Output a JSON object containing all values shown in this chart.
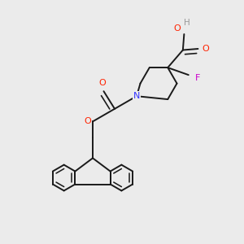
{
  "bg_color": "#ebebeb",
  "bond_color": "#1a1a1a",
  "bond_width": 1.4,
  "atom_colors": {
    "N": "#3333ff",
    "O": "#ff2200",
    "F": "#cc00cc",
    "H": "#999999"
  },
  "scale": 1.0
}
